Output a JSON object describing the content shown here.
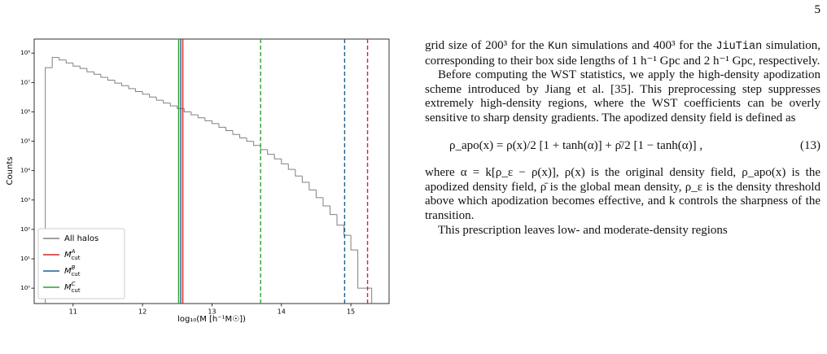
{
  "page_number": "5",
  "chart_data": {
    "type": "histogram",
    "xlabel": "log₁₀(M [h⁻¹M☉])",
    "ylabel": "Counts",
    "bins": [
      10.6,
      10.7,
      10.8,
      10.9,
      11.0,
      11.1,
      11.2,
      11.3,
      11.4,
      11.5,
      11.6,
      11.7,
      11.8,
      11.9,
      12.0,
      12.1,
      12.2,
      12.3,
      12.4,
      12.5,
      12.6,
      12.7,
      12.8,
      12.9,
      13.0,
      13.1,
      13.2,
      13.3,
      13.4,
      13.5,
      13.6,
      13.7,
      13.8,
      13.9,
      14.0,
      14.1,
      14.2,
      14.3,
      14.4,
      14.5,
      14.6,
      14.7,
      14.8,
      14.9,
      15.0,
      15.1,
      15.2,
      15.3
    ],
    "series": [
      {
        "name": "All halos",
        "color": "#808080",
        "values": [
          32000000,
          71000000,
          58000000,
          46000000,
          36000000,
          30000000,
          23000000,
          19000000,
          15000000,
          12000000,
          9500000,
          7800000,
          6200000,
          4900000,
          4000000,
          3200000,
          2500000,
          2000000,
          1600000,
          1300000,
          1000000,
          790000,
          630000,
          500000,
          400000,
          300000,
          230000,
          170000,
          130000,
          100000,
          72000,
          52000,
          36000,
          25000,
          17000,
          11000,
          6600,
          4000,
          2200,
          1200,
          630,
          320,
          140,
          63,
          20,
          1,
          1
        ]
      },
      {
        "name": "M",
        "sup": "A",
        "sub": "cut",
        "color": "#d62728",
        "x": [
          12.58,
          15.24
        ]
      },
      {
        "name": "M",
        "sup": "B",
        "sub": "cut",
        "color": "#1f5f8b",
        "x": [
          12.55,
          14.91
        ]
      },
      {
        "name": "M",
        "sup": "C",
        "sub": "cut",
        "color": "#2ca02c",
        "x": [
          12.52,
          13.7
        ]
      }
    ],
    "line_styles": [
      "solid",
      "dashed"
    ],
    "xlim": [
      10.44,
      15.55
    ],
    "xticks": [
      11,
      12,
      13,
      14,
      15
    ],
    "ylim": [
      0.3,
      300000000
    ],
    "log_y": true,
    "yticks": [
      {
        "value": 1,
        "label": "10⁰"
      },
      {
        "value": 10,
        "label": "10¹"
      },
      {
        "value": 100,
        "label": "10²"
      },
      {
        "value": 1000,
        "label": "10³"
      },
      {
        "value": 10000,
        "label": "10⁴"
      },
      {
        "value": 100000,
        "label": "10⁵"
      },
      {
        "value": 1000000,
        "label": "10⁶"
      },
      {
        "value": 10000000,
        "label": "10⁷"
      },
      {
        "value": 100000000,
        "label": "10⁸"
      }
    ],
    "legend": "lower left"
  },
  "text": {
    "p1": [
      "grid size of 200³ for the ",
      "Kun",
      " simulations and 400³ for the ",
      "JiuTian",
      " simulation, corresponding to their box side lengths of 1 h⁻¹ Gpc and 2 h⁻¹ Gpc, respectively."
    ],
    "p2": "Before computing the WST statistics, we apply the high-density apodization scheme introduced by Jiang et al. [35]. This preprocessing step suppresses extremely high-density regions, where the WST coefficients can be overly sensitive to sharp density gradients. The apodized density field is defined as",
    "equation": "ρ_apo(x) = ρ(x)/2 [1 + tanh(α)] + ρ̄/2 [1 − tanh(α)] ,",
    "equation_number": "(13)",
    "p3": "where α = k[ρ_ε − ρ(x)], ρ(x) is the original density field, ρ_apo(x) is the apodized density field, ρ̄ is the global mean density, ρ_ε is the density threshold above which apodization becomes effective, and k controls the sharpness of the transition.",
    "p4": "This prescription leaves low- and moderate-density regions"
  }
}
